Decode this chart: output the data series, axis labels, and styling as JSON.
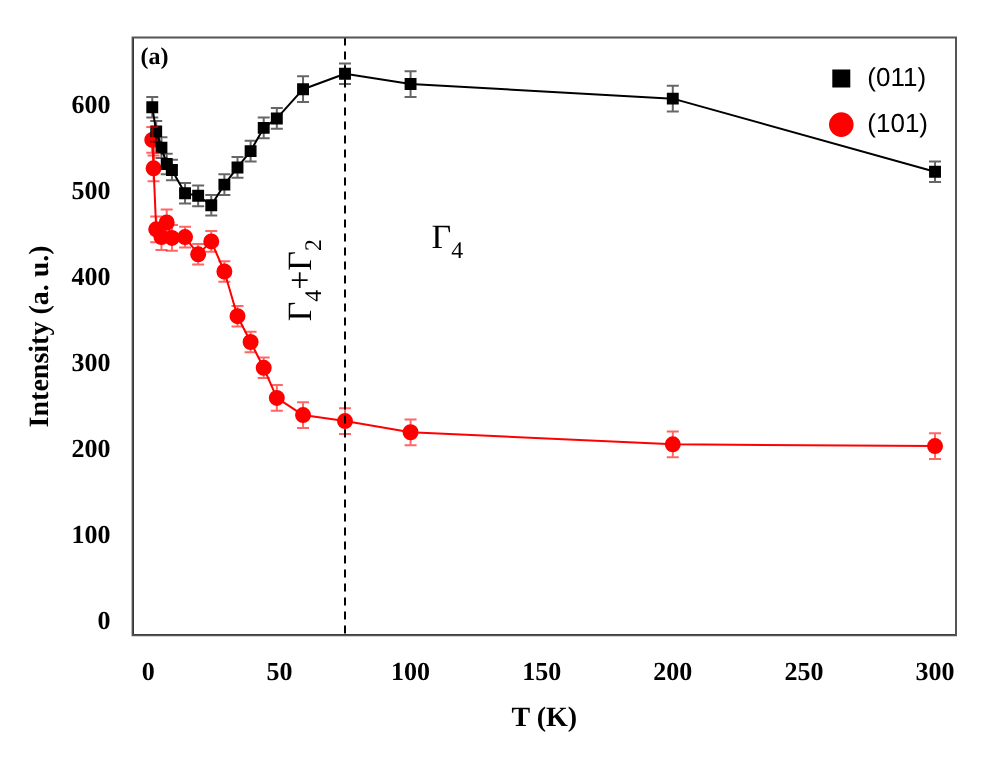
{
  "chart_data": {
    "type": "line",
    "xlabel": "T (K)",
    "ylabel": "Intensity (a. u.)",
    "annotations": [
      "(a)",
      "Γ$_{4}$+Γ$_{2}$",
      "Γ$_{4}$"
    ],
    "series": [
      {
        "name": "(011)",
        "color": "#000000",
        "marker": "square",
        "x": [
          1.5,
          3,
          5,
          7,
          9,
          14,
          19,
          24,
          29,
          34,
          39,
          44,
          49,
          59,
          75,
          100,
          200,
          300
        ],
        "values": [
          599,
          571,
          552,
          533,
          526,
          499,
          496,
          485,
          509,
          529,
          548,
          575,
          586,
          620,
          638,
          626,
          609,
          524
        ],
        "errors": [
          12,
          12,
          12,
          12,
          12,
          12,
          12,
          12,
          12,
          12,
          12,
          12,
          12,
          15,
          12,
          15,
          15,
          12
        ]
      },
      {
        "name": "(101)",
        "color": "#ff0000",
        "marker": "circle",
        "x": [
          1.5,
          2,
          3,
          5,
          7,
          9,
          14,
          19,
          24,
          29,
          34,
          39,
          44,
          49,
          59,
          75,
          100,
          200,
          300
        ],
        "values": [
          561,
          528,
          457,
          448,
          465,
          447,
          448,
          428,
          443,
          408,
          356,
          326,
          296,
          261,
          241,
          234,
          221,
          207,
          205
        ],
        "errors": [
          15,
          15,
          15,
          15,
          15,
          15,
          12,
          12,
          12,
          12,
          12,
          12,
          12,
          15,
          15,
          15,
          15,
          15,
          15
        ]
      }
    ],
    "xlim": [
      -6,
      308
    ],
    "xticks": [
      0,
      50,
      100,
      150,
      200,
      250,
      300
    ],
    "ylim": [
      -15,
      680
    ],
    "yticks": [
      0,
      100,
      200,
      300,
      400,
      500,
      600
    ],
    "ref_lines": [
      {
        "axis": "x",
        "value": 75,
        "line_style": "dashed",
        "color": "#000000"
      }
    ],
    "grid": false,
    "legend": "top right",
    "line_style": "solid"
  }
}
